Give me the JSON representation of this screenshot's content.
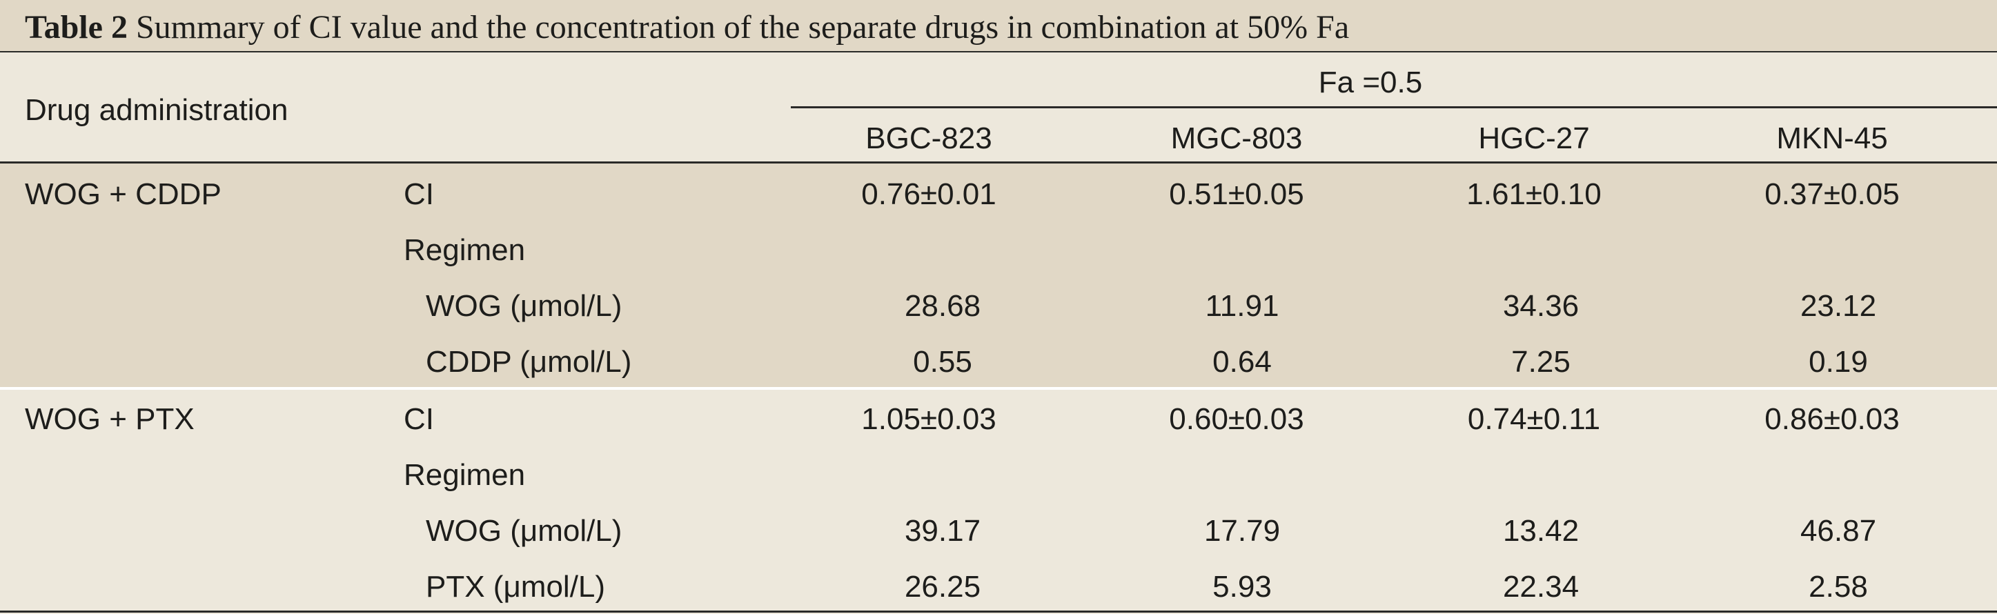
{
  "table": {
    "caption_label": "Table 2",
    "caption_text": "Summary of CI value and the concentration of the separate drugs in combination at 50% Fa",
    "header": {
      "first_col": "Drug administration",
      "group": "Fa =0.5",
      "columns": [
        "BGC-823",
        "MGC-803",
        "HGC-27",
        "MKN-45"
      ]
    },
    "groups": [
      {
        "name": "WOG + CDDP",
        "ci_label": "CI",
        "ci_values": [
          "0.76±0.01",
          "0.51±0.05",
          "1.61±0.10",
          "0.37±0.05"
        ],
        "regimen_label": "Regimen",
        "drug1_label": "WOG (μmol/L)",
        "drug1_values": [
          "28.68",
          "11.91",
          "34.36",
          "23.12"
        ],
        "drug2_label": "CDDP (μmol/L)",
        "drug2_values": [
          "0.55",
          "0.64",
          "7.25",
          "0.19"
        ]
      },
      {
        "name": "WOG + PTX",
        "ci_label": "CI",
        "ci_values": [
          "1.05±0.03",
          "0.60±0.03",
          "0.74±0.11",
          "0.86±0.03"
        ],
        "regimen_label": "Regimen",
        "drug1_label": "WOG (μmol/L)",
        "drug1_values": [
          "39.17",
          "17.79",
          "13.42",
          "46.87"
        ],
        "drug2_label": "PTX (μmol/L)",
        "drug2_values": [
          "26.25",
          "5.93",
          "22.34",
          "2.58"
        ]
      }
    ]
  }
}
